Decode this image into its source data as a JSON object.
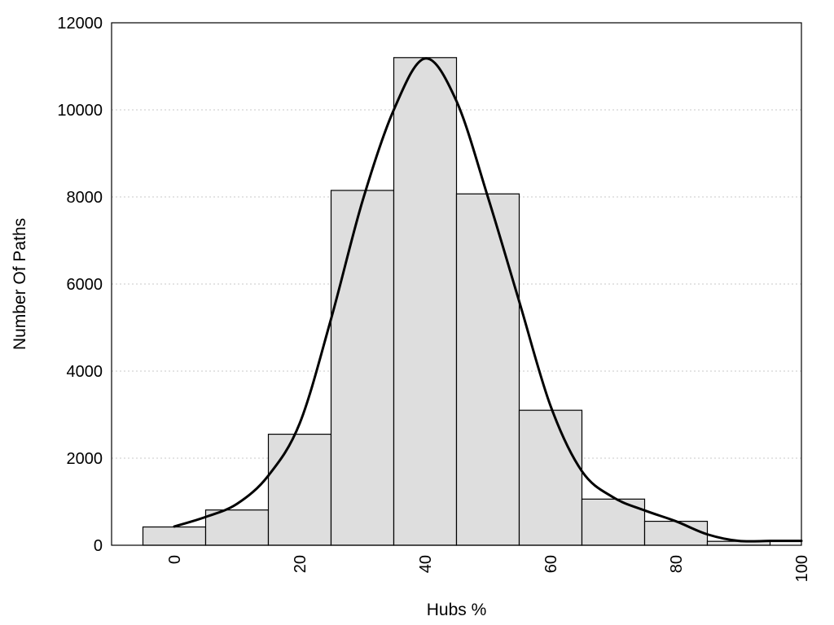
{
  "chart_data": {
    "type": "bar",
    "title": "",
    "xlabel": "Hubs %",
    "ylabel": "Number Of Paths",
    "xlim": [
      -10,
      100
    ],
    "ylim": [
      0,
      12000
    ],
    "grid": "horizontal dotted",
    "bin_width": 10,
    "series": [
      {
        "type": "bar",
        "x": [
          0,
          10,
          20,
          30,
          40,
          50,
          60,
          70,
          80,
          90
        ],
        "values": [
          420,
          810,
          2550,
          8150,
          11200,
          8070,
          3100,
          1060,
          550,
          90
        ]
      },
      {
        "type": "line",
        "x": [
          0,
          5,
          10,
          15,
          20,
          25,
          30,
          35,
          40,
          45,
          50,
          55,
          60,
          65,
          70,
          75,
          80,
          85,
          90,
          95,
          100
        ],
        "values": [
          430,
          650,
          950,
          1600,
          2800,
          5200,
          7900,
          10000,
          11180,
          10200,
          8000,
          5600,
          3200,
          1700,
          1100,
          800,
          550,
          250,
          100,
          100,
          100
        ]
      }
    ],
    "x_ticks": [
      0,
      20,
      40,
      60,
      80,
      100
    ],
    "y_ticks": [
      0,
      2000,
      4000,
      6000,
      8000,
      10000,
      12000
    ],
    "colors": {
      "bar_fill": "#dedede",
      "bar_stroke": "#000000",
      "curve": "#000000",
      "grid": "#c8c8c8"
    }
  }
}
